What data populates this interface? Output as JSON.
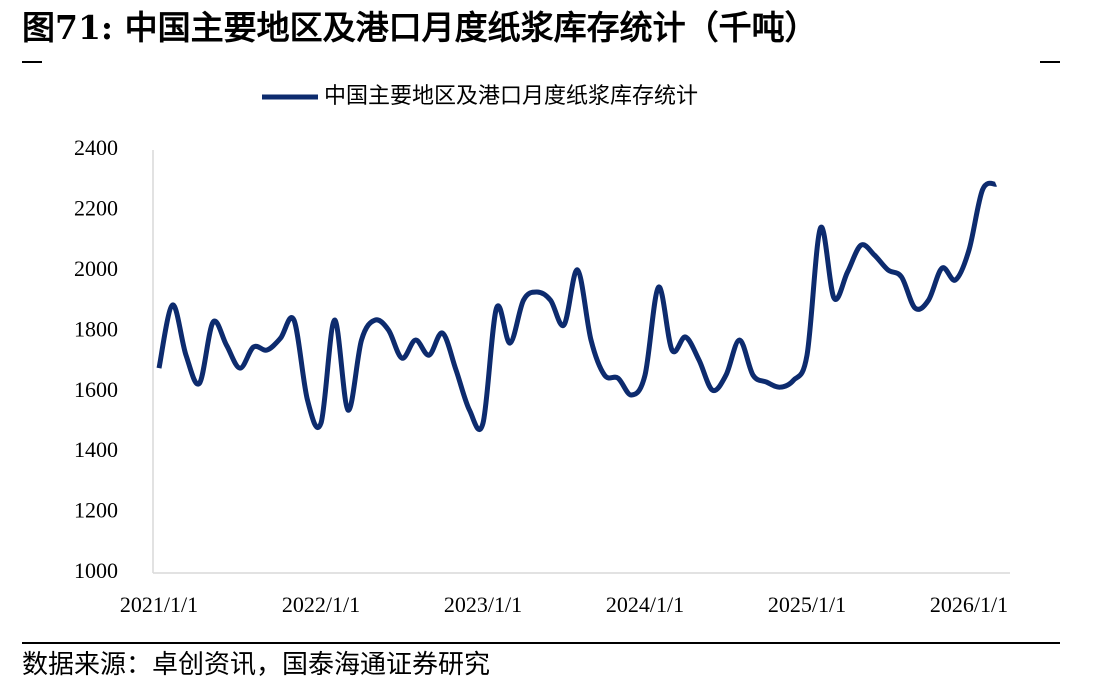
{
  "chart_data": {
    "type": "line",
    "title": "图71: 中国主要地区及港口月度纸浆库存统计（千吨）",
    "source": "数据来源：卓创资讯，国泰海通证券研究",
    "x": [
      "2021/1/1",
      "2021/2/1",
      "2021/3/1",
      "2021/4/1",
      "2021/5/1",
      "2021/6/1",
      "2021/7/1",
      "2021/8/1",
      "2021/9/1",
      "2021/10/1",
      "2021/11/1",
      "2021/12/1",
      "2022/1/1",
      "2022/2/1",
      "2022/3/1",
      "2022/4/1",
      "2022/5/1",
      "2022/6/1",
      "2022/7/1",
      "2022/8/1",
      "2022/9/1",
      "2022/10/1",
      "2022/11/1",
      "2022/12/1",
      "2023/1/1",
      "2023/2/1",
      "2023/3/1",
      "2023/4/1",
      "2023/5/1",
      "2023/6/1",
      "2023/7/1",
      "2023/8/1",
      "2023/9/1",
      "2023/10/1",
      "2023/11/1",
      "2023/12/1",
      "2024/1/1",
      "2024/2/1",
      "2024/3/1",
      "2024/4/1",
      "2024/5/1",
      "2024/6/1",
      "2024/7/1",
      "2024/8/1",
      "2024/9/1",
      "2024/10/1",
      "2024/11/1",
      "2024/12/1",
      "2025/1/1",
      "2025/2/1",
      "2025/3/1",
      "2025/4/1",
      "2025/5/1",
      "2025/6/1",
      "2025/7/1",
      "2025/8/1",
      "2025/9/1",
      "2025/10/1",
      "2025/11/1",
      "2025/12/1",
      "2026/1/1",
      "2026/2/1",
      "2026/3/1"
    ],
    "series": [
      {
        "name": "中国主要地区及港口月度纸浆库存统计",
        "color": "#0d2b6e",
        "values": [
          1678,
          1887,
          1721,
          1628,
          1830,
          1754,
          1678,
          1748,
          1738,
          1777,
          1837,
          1572,
          1496,
          1837,
          1539,
          1771,
          1837,
          1804,
          1711,
          1771,
          1721,
          1794,
          1672,
          1539,
          1496,
          1877,
          1761,
          1903,
          1930,
          1903,
          1821,
          2003,
          1771,
          1655,
          1645,
          1589,
          1655,
          1946,
          1738,
          1781,
          1705,
          1605,
          1655,
          1771,
          1655,
          1632,
          1615,
          1638,
          1721,
          2142,
          1910,
          1996,
          2085,
          2052,
          2003,
          1980,
          1877,
          1903,
          2009,
          1970,
          2069,
          2268,
          2287
        ]
      }
    ],
    "ylim": [
      1000,
      2400
    ],
    "yticks": [
      1000,
      1200,
      1400,
      1600,
      1800,
      2000,
      2200,
      2400
    ],
    "grid": false
  }
}
